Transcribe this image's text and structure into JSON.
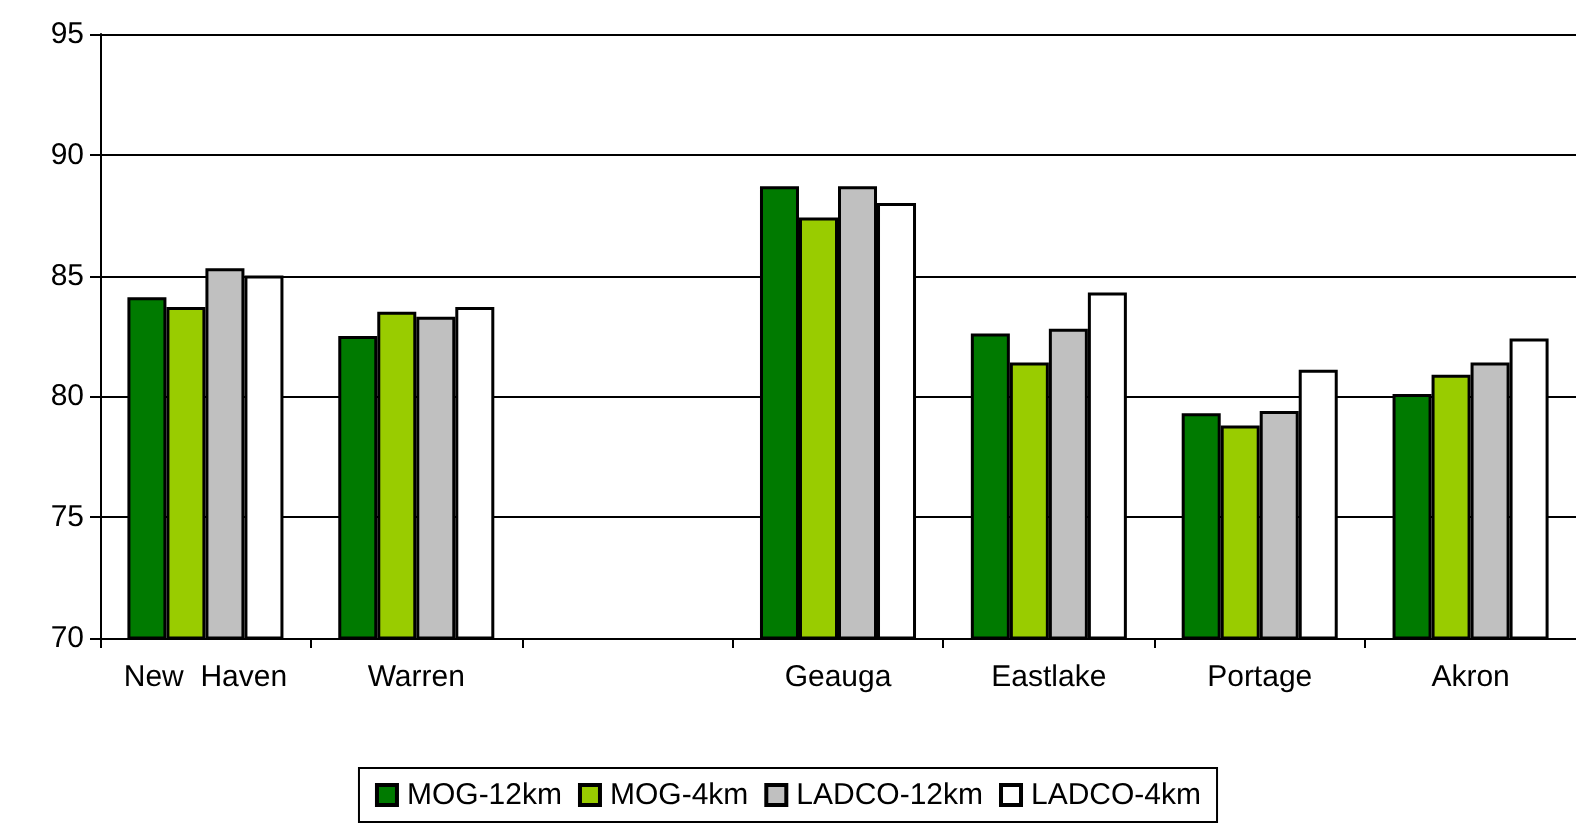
{
  "chart_data": {
    "type": "bar",
    "categories": [
      "New  Haven",
      "Warren",
      null,
      "Geauga",
      "Eastlake",
      "Portage",
      "Akron"
    ],
    "series": [
      {
        "name": "MOG-12km",
        "color": "#007a00",
        "values": [
          84.1,
          82.5,
          null,
          88.7,
          82.6,
          79.3,
          80.1
        ]
      },
      {
        "name": "MOG-4km",
        "color": "#99cc00",
        "values": [
          83.7,
          83.5,
          null,
          87.4,
          81.4,
          78.8,
          80.9
        ]
      },
      {
        "name": "LADCO-12km",
        "color": "#c0c0c0",
        "values": [
          85.3,
          83.3,
          null,
          88.7,
          82.8,
          79.4,
          81.4
        ]
      },
      {
        "name": "LADCO-4km",
        "color": "#ffffff",
        "values": [
          85.0,
          83.7,
          null,
          88.0,
          84.3,
          81.1,
          82.4
        ]
      }
    ],
    "ylim": [
      70,
      95
    ],
    "yticks": [
      70,
      75,
      80,
      85,
      90,
      95
    ],
    "grid": "y",
    "legend": "bottom"
  }
}
